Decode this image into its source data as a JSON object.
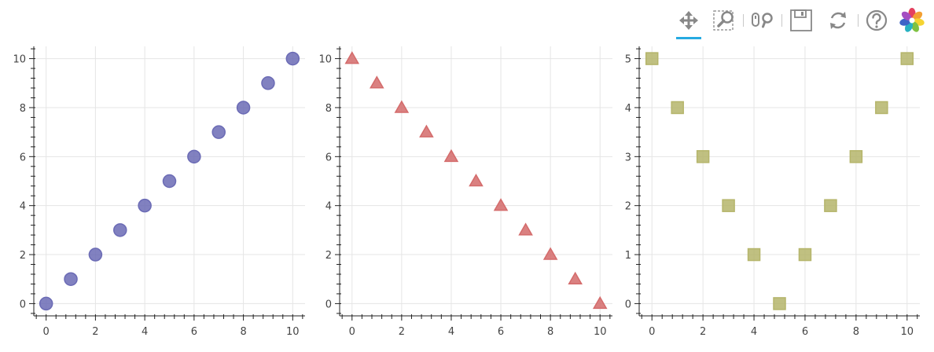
{
  "toolbar": {
    "tools": [
      {
        "name": "pan-icon",
        "active": true
      },
      {
        "name": "box-zoom-icon",
        "active": false
      },
      {
        "name": "wheel-zoom-icon",
        "active": false
      },
      {
        "name": "save-icon",
        "active": false
      },
      {
        "name": "reset-icon",
        "active": false
      },
      {
        "name": "help-icon",
        "active": false
      },
      {
        "name": "bokeh-logo-icon",
        "active": false
      }
    ],
    "active_color": "#26aae1"
  },
  "chart_data": [
    {
      "type": "scatter",
      "marker": "circle",
      "color": "#6b6bb5",
      "x": [
        0,
        1,
        2,
        3,
        4,
        5,
        6,
        7,
        8,
        9,
        10
      ],
      "y": [
        0,
        1,
        2,
        3,
        4,
        5,
        6,
        7,
        8,
        9,
        10
      ],
      "xlim": [
        -0.5,
        10.5
      ],
      "ylim": [
        -0.5,
        10.5
      ],
      "xticks": [
        0,
        2,
        4,
        6,
        8,
        10
      ],
      "yticks": [
        0,
        2,
        4,
        6,
        8,
        10
      ],
      "grid": true
    },
    {
      "type": "scatter",
      "marker": "triangle",
      "color": "#d46b6b",
      "x": [
        0,
        1,
        2,
        3,
        4,
        5,
        6,
        7,
        8,
        9,
        10
      ],
      "y": [
        10,
        9,
        8,
        7,
        6,
        5,
        4,
        3,
        2,
        1,
        0
      ],
      "xlim": [
        -0.5,
        10.5
      ],
      "ylim": [
        -0.5,
        10.5
      ],
      "xticks": [
        0,
        2,
        4,
        6,
        8,
        10
      ],
      "yticks": [
        0,
        2,
        4,
        6,
        8,
        10
      ],
      "grid": true
    },
    {
      "type": "scatter",
      "marker": "square",
      "color": "#b5b56b",
      "x": [
        0,
        1,
        2,
        3,
        4,
        5,
        6,
        7,
        8,
        9,
        10
      ],
      "y": [
        5,
        4,
        3,
        2,
        1,
        0,
        1,
        2,
        3,
        4,
        5
      ],
      "xlim": [
        -0.5,
        10.5
      ],
      "ylim": [
        -0.25,
        5.25
      ],
      "xticks": [
        0,
        2,
        4,
        6,
        8,
        10
      ],
      "yticks": [
        0,
        1,
        2,
        3,
        4,
        5
      ],
      "grid": true
    }
  ]
}
